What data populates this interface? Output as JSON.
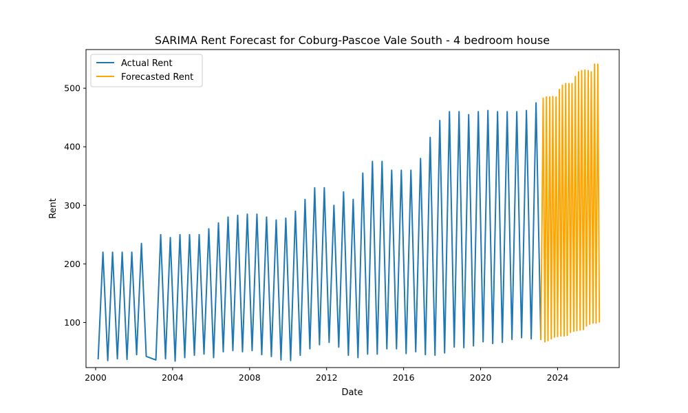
{
  "chart_data": {
    "type": "line",
    "title": "SARIMA Rent Forecast for Coburg-Pascoe Vale South - 4 bedroom house",
    "xlabel": "Date",
    "ylabel": "Rent",
    "xlim": [
      1999.5,
      2027.2
    ],
    "ylim": [
      23,
      566
    ],
    "x_ticks": [
      2000,
      2004,
      2008,
      2012,
      2016,
      2020,
      2024
    ],
    "y_ticks": [
      100,
      200,
      300,
      400,
      500
    ],
    "legend_position": "top-left",
    "grid": false,
    "series": [
      {
        "name": "Actual Rent",
        "color": "#1f77b4",
        "x": [
          2000.13,
          2000.38,
          2000.63,
          2000.88,
          2001.13,
          2001.38,
          2001.63,
          2001.88,
          2002.13,
          2002.38,
          2002.63,
          2003.13,
          2003.38,
          2003.63,
          2003.88,
          2004.13,
          2004.38,
          2004.63,
          2004.88,
          2005.13,
          2005.38,
          2005.63,
          2005.88,
          2006.13,
          2006.38,
          2006.63,
          2006.88,
          2007.13,
          2007.38,
          2007.63,
          2007.88,
          2008.13,
          2008.38,
          2008.63,
          2008.88,
          2009.13,
          2009.38,
          2009.63,
          2009.88,
          2010.13,
          2010.38,
          2010.63,
          2010.88,
          2011.13,
          2011.38,
          2011.63,
          2011.88,
          2012.13,
          2012.38,
          2012.63,
          2012.88,
          2013.13,
          2013.38,
          2013.63,
          2013.88,
          2014.13,
          2014.38,
          2014.63,
          2014.88,
          2015.13,
          2015.38,
          2015.63,
          2015.88,
          2016.13,
          2016.38,
          2016.63,
          2016.88,
          2017.13,
          2017.38,
          2017.63,
          2017.88,
          2018.13,
          2018.38,
          2018.63,
          2018.88,
          2019.13,
          2019.38,
          2019.63,
          2019.88,
          2020.13,
          2020.38,
          2020.63,
          2020.88,
          2021.13,
          2021.38,
          2021.63,
          2021.88,
          2022.13,
          2022.38,
          2022.63,
          2022.88,
          2023.13
        ],
        "y": [
          37,
          220,
          35,
          220,
          38,
          220,
          37,
          220,
          45,
          235,
          42,
          36,
          250,
          38,
          245,
          34,
          250,
          40,
          250,
          44,
          250,
          46,
          260,
          40,
          270,
          50,
          280,
          52,
          283,
          50,
          285,
          52,
          285,
          45,
          280,
          42,
          275,
          36,
          278,
          35,
          290,
          44,
          310,
          55,
          330,
          62,
          330,
          66,
          300,
          58,
          323,
          44,
          310,
          40,
          355,
          46,
          375,
          46,
          375,
          55,
          360,
          55,
          360,
          47,
          360,
          50,
          380,
          45,
          416,
          44,
          445,
          48,
          460,
          58,
          460,
          57,
          455,
          60,
          460,
          67,
          462,
          64,
          460,
          66,
          460,
          71,
          460,
          74,
          462,
          72,
          475,
          70
        ]
      },
      {
        "name": "Forecasted Rent",
        "color": "#ffa500",
        "x": [
          2023.13,
          2023.25,
          2023.34,
          2023.42,
          2023.5,
          2023.59,
          2023.67,
          2023.75,
          2023.84,
          2023.92,
          2024.0,
          2024.09,
          2024.17,
          2024.25,
          2024.34,
          2024.42,
          2024.5,
          2024.59,
          2024.67,
          2024.75,
          2024.84,
          2024.92,
          2025.0,
          2025.09,
          2025.17,
          2025.25,
          2025.34,
          2025.42,
          2025.5,
          2025.59,
          2025.67,
          2025.75,
          2025.84,
          2025.92,
          2026.0,
          2026.09,
          2026.17
        ],
        "y": [
          70,
          483,
          67,
          485,
          69,
          485,
          72,
          486,
          75,
          485,
          76,
          498,
          77,
          505,
          77,
          508,
          78,
          508,
          83,
          508,
          85,
          520,
          86,
          528,
          87,
          530,
          88,
          531,
          94,
          530,
          97,
          528,
          99,
          541,
          99,
          541,
          100
        ]
      }
    ]
  }
}
